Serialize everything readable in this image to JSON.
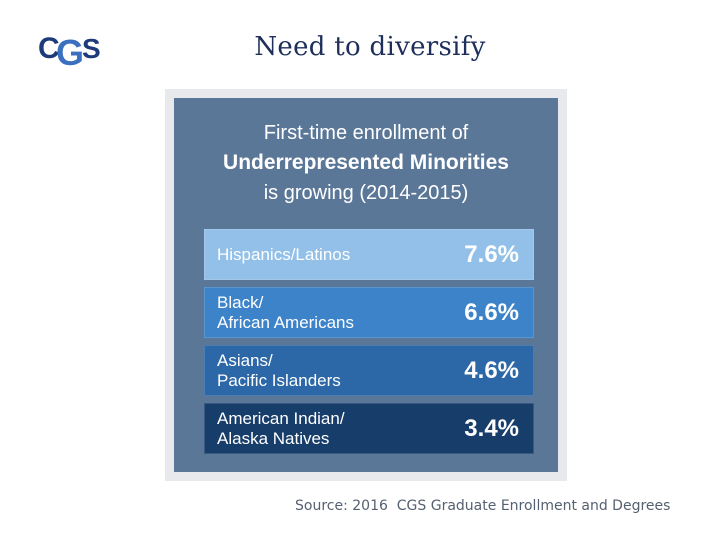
{
  "logo": {
    "text": "CGS",
    "icon": "cgs-logo",
    "colors": {
      "c": "#1e3a7a",
      "g": "#3b6fc0",
      "s": "#1e3a7a"
    }
  },
  "slide": {
    "title": "Need to diversify"
  },
  "infographic": {
    "heading": {
      "line1": "First-time enrollment of",
      "line2": "Underrepresented Minorities",
      "line3": "is growing (2014-2015)"
    },
    "bars": [
      {
        "label": "Hispanics/Latinos",
        "value": "7.6%",
        "color": "#92c0e8"
      },
      {
        "label": "Black/\nAfrican Americans",
        "value": "6.6%",
        "color": "#3c83c9"
      },
      {
        "label": "Asians/\nPacific Islanders",
        "value": "4.6%",
        "color": "#2c67a7"
      },
      {
        "label": "American Indian/\nAlaska Natives",
        "value": "3.4%",
        "color": "#173d6b"
      }
    ]
  },
  "source": "Source: 2016  CGS Graduate Enrollment and Degrees"
}
